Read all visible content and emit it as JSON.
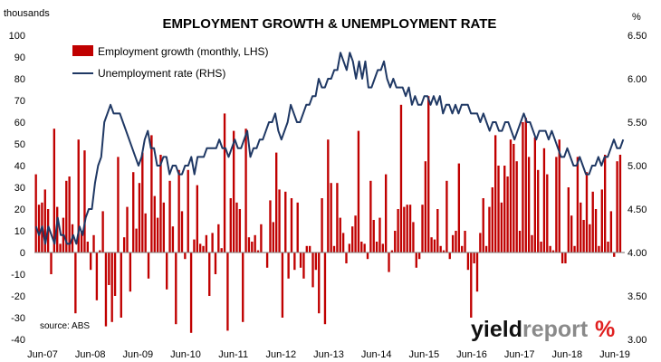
{
  "colors": {
    "bars": "#c00000",
    "line": "#1f3864",
    "brand_dark": "#111111",
    "brand_grey": "#8a8a8a",
    "brand_green": "#2e9e4a",
    "brand_red": "#e02020"
  },
  "logo": {
    "part1": "yield",
    "part2": "report",
    "percent": "%"
  },
  "chart_data": {
    "type": "bar",
    "title": "EMPLOYMENT GROWTH & UNEMPLOYMENT RATE",
    "ylabel": "thousands",
    "y2label": "%",
    "ylim": [
      -40,
      100
    ],
    "y2lim": [
      3.0,
      6.5
    ],
    "yticks": [
      "100",
      "90",
      "80",
      "70",
      "60",
      "50",
      "40",
      "30",
      "20",
      "10",
      "0",
      "-10",
      "-20",
      "-30",
      "-40"
    ],
    "y2ticks": [
      "6.50",
      "6.00",
      "5.50",
      "5.00",
      "4.50",
      "4.00",
      "3.50",
      "3.00"
    ],
    "xticks": [
      "Jun-07",
      "Jun-08",
      "Jun-09",
      "Jun-10",
      "Jun-11",
      "Jun-12",
      "Jun-13",
      "Jun-14",
      "Jun-15",
      "Jun-16",
      "Jun-17",
      "Jun-18",
      "Jun-19"
    ],
    "legend": [
      "Employment growth (monthly, LHS)",
      "Unemployment rate (RHS)"
    ],
    "annotation": "source: ABS",
    "series": [
      {
        "name": "Employment growth (monthly, LHS)",
        "axis": "left",
        "values": [
          36,
          22,
          23,
          29,
          20,
          -10,
          57,
          21,
          4,
          16,
          33,
          35,
          13,
          -28,
          52,
          10,
          47,
          5,
          -8,
          8,
          -22,
          1,
          19,
          -34,
          -15,
          -32,
          -20,
          44,
          -30,
          7,
          21,
          -18,
          37,
          11,
          32,
          46,
          18,
          -12,
          54,
          26,
          16,
          45,
          23,
          -17,
          33,
          12,
          -33,
          38,
          19,
          -3,
          38,
          -37,
          6,
          31,
          4,
          3,
          8,
          -20,
          9,
          -10,
          13,
          2,
          64,
          -36,
          25,
          56,
          23,
          20,
          -32,
          57,
          7,
          5,
          8,
          1,
          13,
          0,
          -7,
          24,
          14,
          46,
          29,
          -30,
          28,
          -12,
          25,
          -8,
          23,
          -7,
          -12,
          3,
          3,
          -16,
          -8,
          -28,
          25,
          -33,
          52,
          32,
          3,
          32,
          16,
          9,
          -5,
          4,
          12,
          17,
          56,
          5,
          4,
          -3,
          33,
          15,
          5,
          16,
          4,
          36,
          -9,
          1,
          10,
          20,
          68,
          21,
          22,
          22,
          14,
          -7,
          -3,
          22,
          42,
          72,
          7,
          6,
          20,
          3,
          1,
          33,
          -3,
          8,
          10,
          41,
          3,
          10,
          -8,
          -30,
          -5,
          -18,
          9,
          25,
          3,
          21,
          30,
          54,
          40,
          23,
          40,
          35,
          52,
          50,
          42,
          10,
          60,
          62,
          44,
          8,
          53,
          38,
          5,
          48,
          36,
          3,
          1,
          44,
          52,
          -5,
          -5,
          30,
          17,
          3,
          44,
          23,
          15,
          37,
          13,
          28,
          20,
          3,
          29,
          45,
          5,
          19,
          -2,
          42,
          45,
          0
        ]
      },
      {
        "name": "Unemployment rate (RHS)",
        "axis": "right",
        "values": [
          4.3,
          4.2,
          4.3,
          4.1,
          4.3,
          4.2,
          4.1,
          4.4,
          4.2,
          4.2,
          4.1,
          4.1,
          4.2,
          4.1,
          4.3,
          4.2,
          4.4,
          4.5,
          4.5,
          4.8,
          5.0,
          5.1,
          5.5,
          5.6,
          5.7,
          5.6,
          5.6,
          5.6,
          5.5,
          5.4,
          5.3,
          5.2,
          5.1,
          5.0,
          5.1,
          5.3,
          5.4,
          5.2,
          5.2,
          5.0,
          5.0,
          5.1,
          5.1,
          4.9,
          5.0,
          5.0,
          4.9,
          4.9,
          5.0,
          5.0,
          5.1,
          4.9,
          5.1,
          5.1,
          5.1,
          5.2,
          5.2,
          5.2,
          5.2,
          5.3,
          5.2,
          5.2,
          5.1,
          5.2,
          5.3,
          5.2,
          5.2,
          5.3,
          5.4,
          5.1,
          5.2,
          5.2,
          5.3,
          5.3,
          5.4,
          5.5,
          5.5,
          5.6,
          5.4,
          5.3,
          5.4,
          5.5,
          5.7,
          5.6,
          5.5,
          5.5,
          5.6,
          5.7,
          5.7,
          5.8,
          5.8,
          6.0,
          5.9,
          5.9,
          6.0,
          6.0,
          6.1,
          6.1,
          6.3,
          6.2,
          6.1,
          6.3,
          6.2,
          6.0,
          6.2,
          6.0,
          6.2,
          5.9,
          5.9,
          6.0,
          6.1,
          6.1,
          6.2,
          6.0,
          5.9,
          6.0,
          5.9,
          5.9,
          5.9,
          5.8,
          5.9,
          5.7,
          5.8,
          5.7,
          5.7,
          5.8,
          5.8,
          5.7,
          5.8,
          5.7,
          5.8,
          5.6,
          5.7,
          5.7,
          5.6,
          5.7,
          5.6,
          5.7,
          5.7,
          5.7,
          5.6,
          5.6,
          5.6,
          5.5,
          5.6,
          5.5,
          5.4,
          5.5,
          5.5,
          5.4,
          5.4,
          5.5,
          5.5,
          5.4,
          5.3,
          5.4,
          5.5,
          5.6,
          5.5,
          5.5,
          5.4,
          5.3,
          5.4,
          5.4,
          5.4,
          5.3,
          5.4,
          5.3,
          5.2,
          5.1,
          5.1,
          5.2,
          5.1,
          5.0,
          5.0,
          5.1,
          5.0,
          4.9,
          4.9,
          5.0,
          5.0,
          5.1,
          5.0,
          5.1,
          5.1,
          5.2,
          5.3,
          5.2,
          5.2,
          5.3
        ]
      }
    ]
  }
}
